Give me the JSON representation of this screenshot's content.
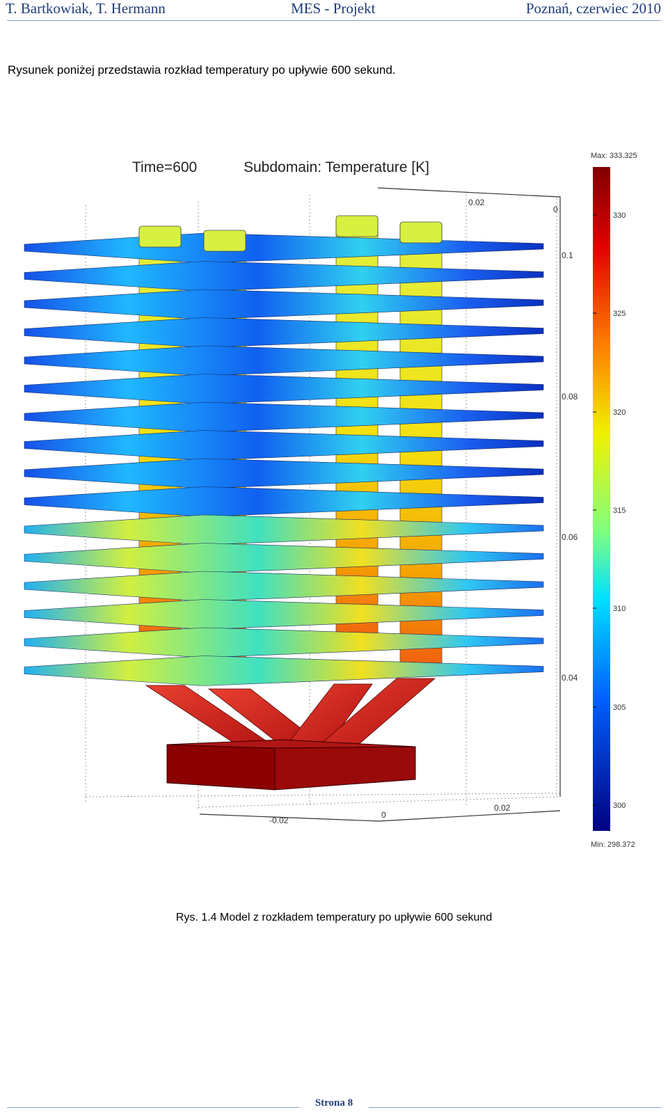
{
  "header": {
    "authors": "T. Bartkowiak, T. Hermann",
    "project": "MES - Projekt",
    "place_date": "Poznań, czerwiec 2010"
  },
  "intro_text": "Rysunek poniżej przedstawia rozkład temperatury po upływie 600 sekund.",
  "figure": {
    "time_label": "Time=600",
    "subdomain_label": "Subdomain: Temperature [K]",
    "colorbar": {
      "max_label": "Max: 333.325",
      "min_label": "Min: 298.372",
      "ticks": [
        "330",
        "325",
        "320",
        "315",
        "310",
        "305",
        "300"
      ]
    },
    "axis_labels": {
      "top_002": "0.02",
      "top_0": "0",
      "z_01": "0.1",
      "z_008": "0.08",
      "z_006": "0.06",
      "z_004": "0.04",
      "x_neg002": "-0.02",
      "x_0": "0",
      "x_002": "0.02"
    },
    "colors": {
      "hot": "#8b0000",
      "red": "#d42a1a",
      "orange": "#f5a000",
      "yellow": "#e8f020",
      "cyan": "#20c8e0",
      "blue": "#1040e0",
      "dark_blue": "#000080"
    }
  },
  "caption": "Rys. 1.4 Model z rozkładem temperatury po upływie 600 sekund",
  "footer": {
    "page": "Strona 8"
  }
}
